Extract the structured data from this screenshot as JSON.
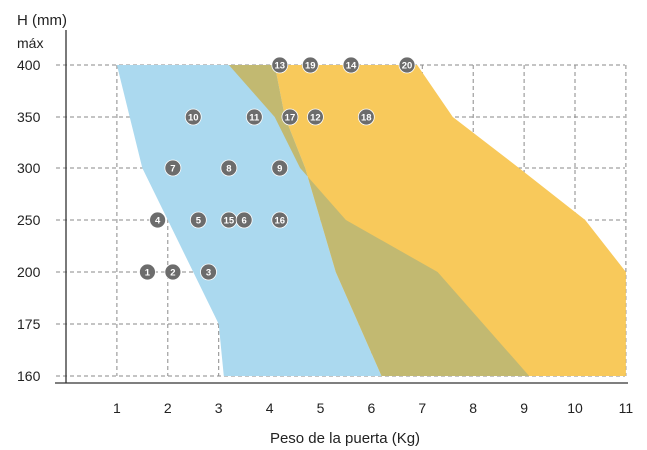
{
  "chart_data": {
    "type": "area",
    "ylabel": "H (mm)",
    "ylabel_sub": "máx",
    "xlabel": "Peso de la puerta (Kg)",
    "x_ticks": [
      1,
      2,
      3,
      4,
      5,
      6,
      7,
      8,
      9,
      10,
      11
    ],
    "y_ticks": [
      400,
      350,
      300,
      250,
      200,
      175,
      160
    ],
    "xlim": [
      0,
      11
    ],
    "grid": true,
    "colors": {
      "blue": "#abd9ef",
      "yellow": "#f8c95b",
      "olive": "#c2b971",
      "marker": "#6c6c6c"
    },
    "series": [
      {
        "color": "blue",
        "points": [
          [
            1.0,
            400
          ],
          [
            1.5,
            300
          ],
          [
            2.0,
            250
          ],
          [
            3.0,
            175
          ],
          [
            3.1,
            160
          ],
          [
            6.2,
            160
          ],
          [
            5.3,
            200
          ],
          [
            5.0,
            250
          ],
          [
            4.7,
            300
          ],
          [
            4.3,
            350
          ],
          [
            4.1,
            400
          ]
        ]
      },
      {
        "color": "yellow",
        "points": [
          [
            2.5,
            400
          ],
          [
            6.9,
            400
          ],
          [
            7.6,
            350
          ],
          [
            8.9,
            300
          ],
          [
            10.2,
            250
          ],
          [
            11.0,
            200
          ],
          [
            11.0,
            160
          ],
          [
            6.2,
            160
          ],
          [
            5.3,
            200
          ],
          [
            5.0,
            250
          ],
          [
            4.7,
            300
          ],
          [
            4.3,
            350
          ],
          [
            4.1,
            400
          ]
        ]
      },
      {
        "color": "olive",
        "points": [
          [
            3.2,
            400
          ],
          [
            4.1,
            350
          ],
          [
            4.6,
            300
          ],
          [
            5.5,
            250
          ],
          [
            7.3,
            200
          ],
          [
            8.2,
            175
          ],
          [
            9.1,
            160
          ],
          [
            6.2,
            160
          ],
          [
            5.3,
            200
          ],
          [
            5.0,
            250
          ],
          [
            4.7,
            300
          ],
          [
            4.3,
            350
          ],
          [
            4.1,
            400
          ]
        ]
      }
    ],
    "markers": [
      {
        "label": "1",
        "x": 1.6,
        "y": 200
      },
      {
        "label": "2",
        "x": 2.1,
        "y": 200
      },
      {
        "label": "3",
        "x": 2.8,
        "y": 200
      },
      {
        "label": "4",
        "x": 1.8,
        "y": 250
      },
      {
        "label": "5",
        "x": 2.6,
        "y": 250
      },
      {
        "label": "15",
        "x": 3.2,
        "y": 250
      },
      {
        "label": "6",
        "x": 3.5,
        "y": 250
      },
      {
        "label": "16",
        "x": 4.2,
        "y": 250
      },
      {
        "label": "7",
        "x": 2.1,
        "y": 300
      },
      {
        "label": "8",
        "x": 3.2,
        "y": 300
      },
      {
        "label": "9",
        "x": 4.2,
        "y": 300
      },
      {
        "label": "10",
        "x": 2.5,
        "y": 350
      },
      {
        "label": "11",
        "x": 3.7,
        "y": 350
      },
      {
        "label": "17",
        "x": 4.4,
        "y": 350
      },
      {
        "label": "12",
        "x": 4.9,
        "y": 350
      },
      {
        "label": "18",
        "x": 5.9,
        "y": 350
      },
      {
        "label": "13",
        "x": 4.2,
        "y": 400
      },
      {
        "label": "19",
        "x": 4.8,
        "y": 400
      },
      {
        "label": "14",
        "x": 5.6,
        "y": 400
      },
      {
        "label": "20",
        "x": 6.7,
        "y": 400
      }
    ]
  }
}
